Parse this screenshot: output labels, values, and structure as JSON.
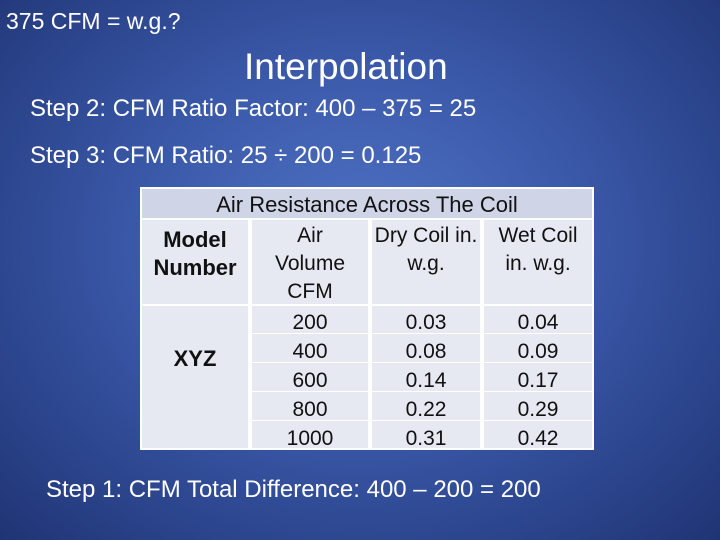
{
  "slide": {
    "corner_title": "375 CFM = w.g.?",
    "title": "Interpolation",
    "steps": [
      "Step 2: CFM Ratio Factor: 400 – 375 = 25",
      "Step 3: CFM Ratio: 25 ÷ 200 = 0.125",
      "Step 1: CFM Total Difference: 400 – 200 = 200"
    ]
  },
  "table": {
    "caption": "Air Resistance Across The Coil",
    "headers": [
      [
        "Model",
        "Number"
      ],
      [
        "Air",
        "Volume",
        "CFM"
      ],
      [
        "Dry Coil in.",
        "w.g."
      ],
      [
        "Wet Coil",
        "in. w.g."
      ]
    ],
    "model": "XYZ",
    "rows": [
      [
        200,
        0.03,
        0.04
      ],
      [
        400,
        0.08,
        0.09
      ],
      [
        600,
        0.14,
        0.17
      ],
      [
        800,
        0.22,
        0.29
      ],
      [
        1000,
        0.31,
        0.42
      ]
    ]
  }
}
